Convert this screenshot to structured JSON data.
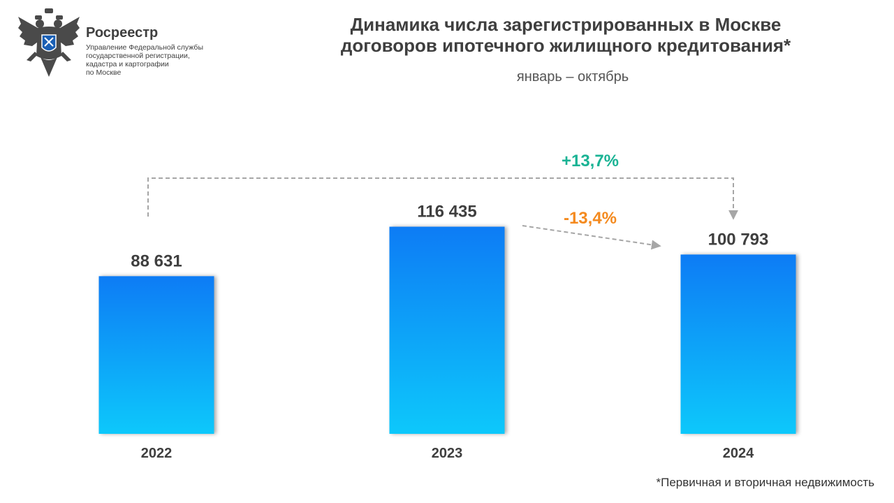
{
  "logo": {
    "name": "Росреестр",
    "lines": [
      "Управление Федеральной службы",
      "государственной регистрации,",
      "кадастра и картографии",
      "по Москве"
    ],
    "icon": "double-headed-eagle-emblem"
  },
  "header": {
    "title_line1": "Динамика числа зарегистрированных в Москве",
    "title_line2": "договоров ипотечного жилищного кредитования*",
    "subtitle": "январь – октябрь"
  },
  "footnote": "*Первичная и вторичная недвижимость",
  "colors": {
    "bar_top": "#0b7cf5",
    "bar_bottom": "#08c8fb",
    "positive": "#1ab394",
    "negative": "#f48a1f",
    "connector": "#a6a6a6",
    "text": "#3f3f3f"
  },
  "chart_data": {
    "type": "bar",
    "categories": [
      "2022",
      "2023",
      "2024"
    ],
    "values": [
      88631,
      116435,
      100793
    ],
    "value_labels": [
      "88 631",
      "116 435",
      "100 793"
    ],
    "ylim": [
      0,
      130000
    ],
    "grid": false,
    "annotations": [
      {
        "text": "+13,7%",
        "from": "2022",
        "to": "2024",
        "style": "bracket",
        "color": "positive"
      },
      {
        "text": "-13,4%",
        "from": "2023",
        "to": "2024",
        "style": "arrow",
        "color": "negative"
      }
    ]
  }
}
